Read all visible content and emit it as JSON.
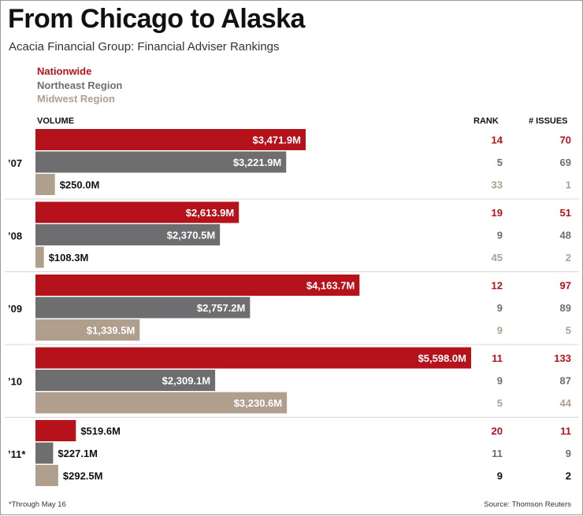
{
  "colors": {
    "nationwide": "#b5121b",
    "northeast": "#6e6e70",
    "midwest": "#b19f8e",
    "divider": "#d8d8d8"
  },
  "chart_data": {
    "type": "bar",
    "orientation": "horizontal",
    "title": "From Chicago to Alaska",
    "subtitle": "Acacia Financial Group: Financial Adviser Rankings",
    "legend": [
      "Nationwide",
      "Northeast Region",
      "Midwest Region"
    ],
    "columns": {
      "volume": "VOLUME",
      "rank": "RANK",
      "issues": "# ISSUES"
    },
    "unit": "$M",
    "xlim": [
      0,
      5598.0
    ],
    "categories": [
      "’07",
      "’08",
      "’09",
      "’10",
      "’11*"
    ],
    "series": [
      {
        "name": "Nationwide",
        "values": [
          3471.9,
          2613.9,
          4163.7,
          5598.0,
          519.6
        ],
        "labels": [
          "$3,471.9M",
          "$2,613.9M",
          "$4,163.7M",
          "$5,598.0M",
          "$519.6M"
        ],
        "rank": [
          "14",
          "19",
          "12",
          "11",
          "20"
        ],
        "issues": [
          "70",
          "51",
          "97",
          "133",
          "11"
        ]
      },
      {
        "name": "Northeast Region",
        "values": [
          3221.9,
          2370.5,
          2757.2,
          2309.1,
          227.1
        ],
        "labels": [
          "$3,221.9M",
          "$2,370.5M",
          "$2,757.2M",
          "$2,309.1M",
          "$227.1M"
        ],
        "rank": [
          "5",
          "9",
          "9",
          "9",
          "11"
        ],
        "issues": [
          "69",
          "48",
          "89",
          "87",
          "9"
        ]
      },
      {
        "name": "Midwest Region",
        "values": [
          250.0,
          108.3,
          1339.5,
          3230.6,
          292.5
        ],
        "labels": [
          "$250.0M",
          "$108.3M",
          "$1,339.5M",
          "$3,230.6M",
          "$292.5M"
        ],
        "rank": [
          "33",
          "45",
          "9",
          "5",
          "9"
        ],
        "issues": [
          "1",
          "2",
          "5",
          "44",
          "2"
        ]
      }
    ],
    "footnote": "*Through May 16",
    "source": "Source: Thomson Reuters"
  }
}
